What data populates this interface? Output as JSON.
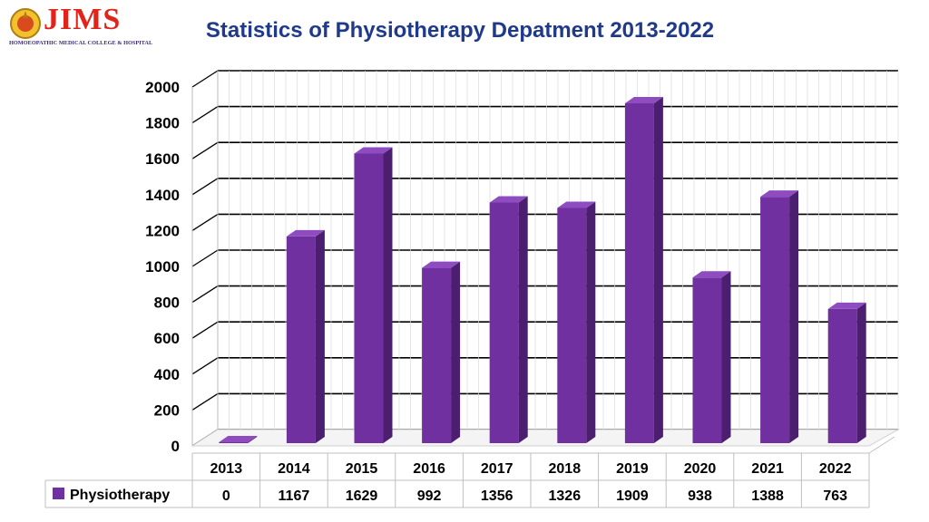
{
  "logo": {
    "text": "JIMS",
    "subtitle": "HOMOEOPATHIC MEDICAL COLLEGE & HOSPITAL"
  },
  "colors": {
    "bar_front": "#7030a0",
    "bar_side": "#4b1e70",
    "bar_top": "#8e4cc0",
    "grid": "#000000",
    "title": "#1f3a8a"
  },
  "chart_data": {
    "type": "bar",
    "title": "Statistics of Physiotherapy Depatment 2013-2022",
    "categories": [
      "2013",
      "2014",
      "2015",
      "2016",
      "2017",
      "2018",
      "2019",
      "2020",
      "2021",
      "2022"
    ],
    "series": [
      {
        "name": "Physiotherapy",
        "values": [
          0,
          1167,
          1629,
          992,
          1356,
          1326,
          1909,
          938,
          1388,
          763
        ]
      }
    ],
    "ylim": [
      0,
      2000
    ],
    "ytick_step": 200,
    "grid": true,
    "legend": "data-table",
    "three_d": true
  }
}
